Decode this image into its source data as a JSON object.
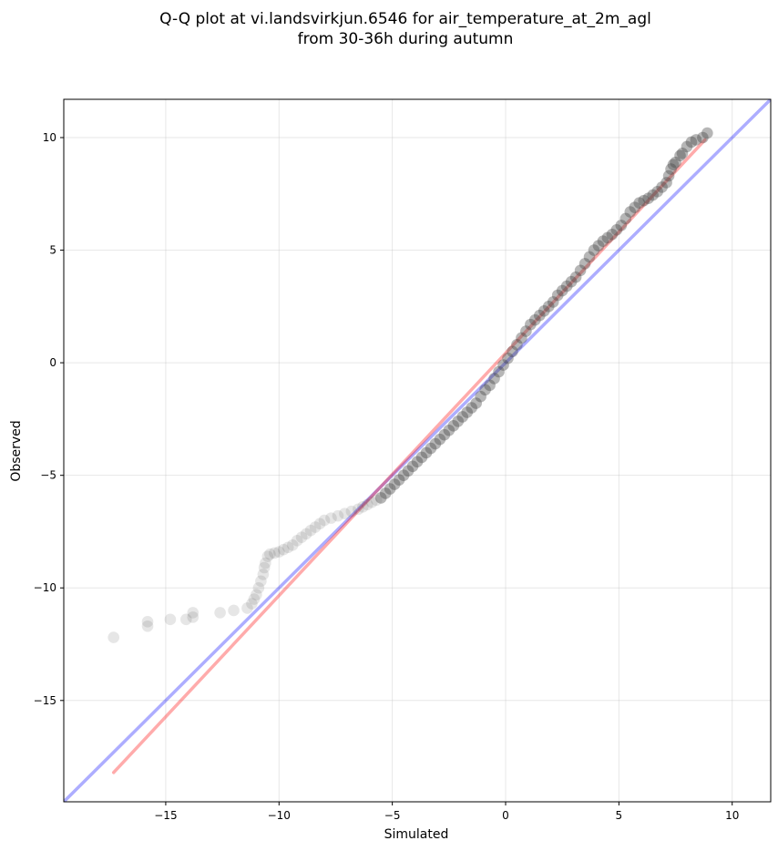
{
  "chart_data": {
    "type": "scatter",
    "title_lines": [
      "Q-Q plot at vi.landsvirkjun.6546 for air_temperature_at_2m_agl",
      "from 30-36h during autumn"
    ],
    "xlabel": "Simulated",
    "ylabel": "Observed",
    "xlim": [
      -19.5,
      11.7
    ],
    "ylim": [
      -19.5,
      11.7
    ],
    "x_ticks": [
      -15,
      -10,
      -5,
      0,
      5,
      10
    ],
    "y_ticks": [
      -15,
      -10,
      -5,
      0,
      5,
      10
    ],
    "x_tick_labels": [
      "−15",
      "−10",
      "−5",
      "0",
      "5",
      "10"
    ],
    "y_tick_labels": [
      "−15",
      "−10",
      "−5",
      "0",
      "5",
      "10"
    ],
    "grid": true,
    "marker_color": "#404040",
    "series": [
      {
        "kind": "identity-line",
        "color": "#0000ff",
        "x": [
          -19.5,
          11.7
        ],
        "y": [
          -19.5,
          11.7
        ]
      },
      {
        "kind": "fit-line",
        "color": "#ff0000",
        "x": [
          -17.3,
          8.8
        ],
        "y": [
          -18.2,
          9.9
        ]
      },
      {
        "kind": "quantiles",
        "points": [
          [
            -17.3,
            -12.2
          ],
          [
            -15.8,
            -11.7
          ],
          [
            -15.8,
            -11.5
          ],
          [
            -14.8,
            -11.4
          ],
          [
            -14.1,
            -11.4
          ],
          [
            -13.8,
            -11.3
          ],
          [
            -13.8,
            -11.1
          ],
          [
            -12.6,
            -11.1
          ],
          [
            -12.0,
            -11.0
          ],
          [
            -11.4,
            -10.9
          ],
          [
            -11.2,
            -10.7
          ],
          [
            -11.1,
            -10.5
          ],
          [
            -11.0,
            -10.3
          ],
          [
            -10.9,
            -10.0
          ],
          [
            -10.8,
            -9.7
          ],
          [
            -10.7,
            -9.4
          ],
          [
            -10.65,
            -9.1
          ],
          [
            -10.6,
            -8.9
          ],
          [
            -10.5,
            -8.6
          ],
          [
            -10.4,
            -8.5
          ],
          [
            -10.2,
            -8.45
          ],
          [
            -10.0,
            -8.4
          ],
          [
            -9.8,
            -8.3
          ],
          [
            -9.6,
            -8.2
          ],
          [
            -9.4,
            -8.1
          ],
          [
            -9.2,
            -7.9
          ],
          [
            -9.0,
            -7.75
          ],
          [
            -8.8,
            -7.6
          ],
          [
            -8.6,
            -7.45
          ],
          [
            -8.4,
            -7.3
          ],
          [
            -8.2,
            -7.15
          ],
          [
            -8.0,
            -7.0
          ],
          [
            -7.7,
            -6.9
          ],
          [
            -7.4,
            -6.8
          ],
          [
            -7.1,
            -6.7
          ],
          [
            -6.8,
            -6.6
          ],
          [
            -6.5,
            -6.5
          ],
          [
            -6.3,
            -6.4
          ],
          [
            -6.1,
            -6.3
          ],
          [
            -5.9,
            -6.2
          ],
          [
            -5.7,
            -6.1
          ],
          [
            -5.5,
            -6.0
          ],
          [
            -5.3,
            -5.8
          ],
          [
            -5.1,
            -5.6
          ],
          [
            -4.9,
            -5.4
          ],
          [
            -4.7,
            -5.2
          ],
          [
            -4.5,
            -5.0
          ],
          [
            -4.3,
            -4.8
          ],
          [
            -4.1,
            -4.6
          ],
          [
            -3.9,
            -4.4
          ],
          [
            -3.7,
            -4.2
          ],
          [
            -3.5,
            -4.0
          ],
          [
            -3.3,
            -3.8
          ],
          [
            -3.1,
            -3.6
          ],
          [
            -2.9,
            -3.4
          ],
          [
            -2.7,
            -3.2
          ],
          [
            -2.5,
            -3.0
          ],
          [
            -2.3,
            -2.8
          ],
          [
            -2.1,
            -2.6
          ],
          [
            -1.9,
            -2.4
          ],
          [
            -1.7,
            -2.2
          ],
          [
            -1.5,
            -2.0
          ],
          [
            -1.3,
            -1.8
          ],
          [
            -1.1,
            -1.5
          ],
          [
            -0.9,
            -1.2
          ],
          [
            -0.7,
            -1.0
          ],
          [
            -0.5,
            -0.7
          ],
          [
            -0.3,
            -0.4
          ],
          [
            -0.1,
            -0.1
          ],
          [
            0.1,
            0.2
          ],
          [
            0.3,
            0.5
          ],
          [
            0.5,
            0.8
          ],
          [
            0.7,
            1.1
          ],
          [
            0.9,
            1.4
          ],
          [
            1.1,
            1.7
          ],
          [
            1.3,
            1.9
          ],
          [
            1.5,
            2.1
          ],
          [
            1.7,
            2.3
          ],
          [
            1.9,
            2.5
          ],
          [
            2.1,
            2.7
          ],
          [
            2.3,
            3.0
          ],
          [
            2.5,
            3.2
          ],
          [
            2.7,
            3.4
          ],
          [
            2.9,
            3.6
          ],
          [
            3.1,
            3.8
          ],
          [
            3.3,
            4.1
          ],
          [
            3.5,
            4.4
          ],
          [
            3.7,
            4.7
          ],
          [
            3.9,
            5.0
          ],
          [
            4.1,
            5.2
          ],
          [
            4.3,
            5.4
          ],
          [
            4.5,
            5.55
          ],
          [
            4.7,
            5.7
          ],
          [
            4.9,
            5.9
          ],
          [
            5.1,
            6.1
          ],
          [
            5.3,
            6.4
          ],
          [
            5.5,
            6.7
          ],
          [
            5.7,
            6.9
          ],
          [
            5.9,
            7.1
          ],
          [
            6.1,
            7.2
          ],
          [
            6.3,
            7.3
          ],
          [
            6.5,
            7.45
          ],
          [
            6.7,
            7.6
          ],
          [
            6.9,
            7.8
          ],
          [
            7.1,
            8.0
          ],
          [
            7.2,
            8.3
          ],
          [
            7.3,
            8.6
          ],
          [
            7.4,
            8.8
          ],
          [
            7.5,
            8.9
          ],
          [
            7.7,
            9.2
          ],
          [
            7.8,
            9.3
          ],
          [
            8.0,
            9.6
          ],
          [
            8.2,
            9.8
          ],
          [
            8.4,
            9.9
          ],
          [
            8.7,
            10.0
          ],
          [
            8.9,
            10.2
          ]
        ]
      }
    ]
  }
}
